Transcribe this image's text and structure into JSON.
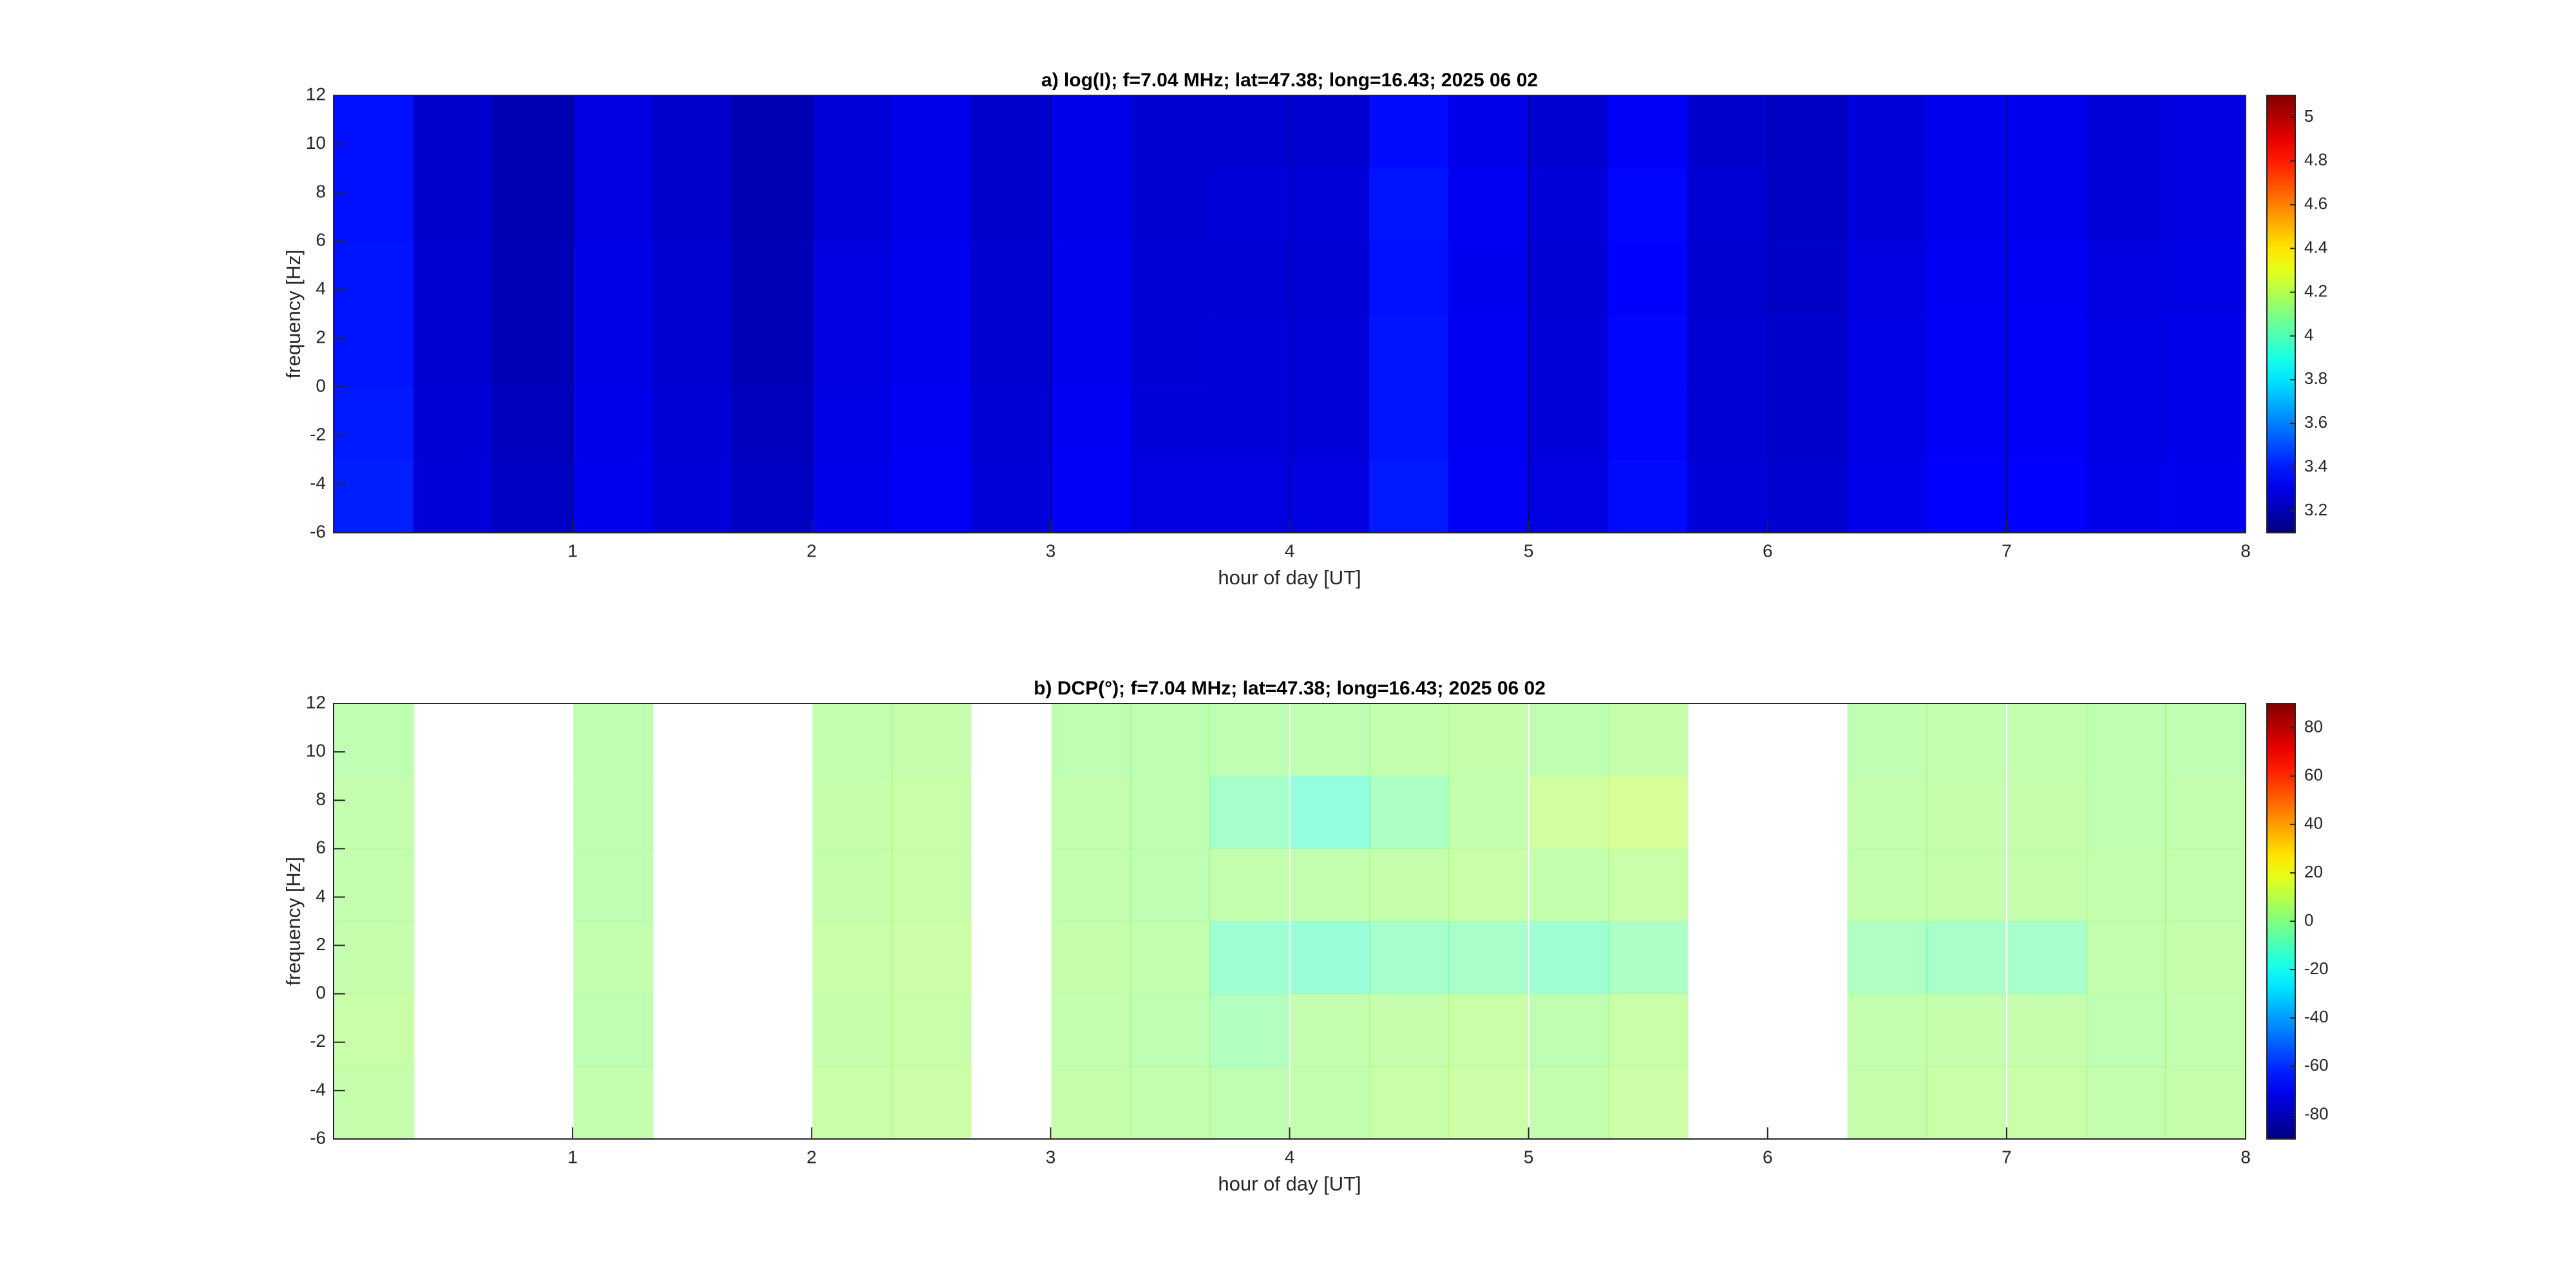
{
  "chart_data": [
    {
      "type": "heatmap",
      "title": "a) log(I); f=7.04 MHz;  lat=47.38; long=16.43; 2025 06 02",
      "x_label": "hour of day [UT]",
      "y_label": "frequency [Hz]",
      "xlim": [
        0,
        8
      ],
      "xticks": [
        1,
        2,
        3,
        4,
        5,
        6,
        7,
        8
      ],
      "ylim": [
        -6,
        12
      ],
      "yticks": [
        -6,
        -4,
        -2,
        0,
        2,
        4,
        6,
        8,
        10,
        12
      ],
      "clim": [
        3.1,
        5.1
      ],
      "cticks": [
        3.2,
        3.4,
        3.6,
        3.8,
        4,
        4.2,
        4.4,
        4.6,
        4.8,
        5
      ],
      "colormap": "jet",
      "x": [
        0.17,
        0.5,
        0.83,
        1.17,
        1.5,
        1.83,
        2.17,
        2.5,
        2.83,
        3.17,
        3.5,
        3.83,
        4.17,
        4.5,
        4.83,
        5.17,
        5.5,
        5.83,
        6.17,
        6.5,
        6.83,
        7.17,
        7.5,
        7.83
      ],
      "y": [
        -4.5,
        -1.5,
        1.5,
        4.5,
        7.5,
        10.5
      ],
      "z": [
        [
          3.41,
          3.28,
          3.23,
          3.32,
          3.28,
          3.23,
          3.31,
          3.34,
          3.28,
          3.34,
          3.29,
          3.29,
          3.29,
          3.4,
          3.34,
          3.29,
          3.37,
          3.28,
          3.26,
          3.31,
          3.35,
          3.35,
          3.31,
          3.32
        ],
        [
          3.4,
          3.27,
          3.22,
          3.31,
          3.27,
          3.22,
          3.3,
          3.33,
          3.27,
          3.33,
          3.28,
          3.28,
          3.28,
          3.39,
          3.33,
          3.28,
          3.36,
          3.27,
          3.25,
          3.3,
          3.34,
          3.34,
          3.3,
          3.31
        ],
        [
          3.39,
          3.26,
          3.21,
          3.3,
          3.26,
          3.21,
          3.29,
          3.32,
          3.26,
          3.32,
          3.27,
          3.28,
          3.28,
          3.39,
          3.33,
          3.28,
          3.36,
          3.27,
          3.25,
          3.3,
          3.34,
          3.34,
          3.3,
          3.31
        ],
        [
          3.39,
          3.26,
          3.21,
          3.3,
          3.26,
          3.21,
          3.29,
          3.32,
          3.26,
          3.32,
          3.27,
          3.27,
          3.27,
          3.38,
          3.32,
          3.27,
          3.35,
          3.26,
          3.24,
          3.29,
          3.33,
          3.33,
          3.29,
          3.3
        ],
        [
          3.38,
          3.25,
          3.2,
          3.29,
          3.25,
          3.2,
          3.28,
          3.31,
          3.25,
          3.31,
          3.26,
          3.28,
          3.28,
          3.39,
          3.33,
          3.28,
          3.36,
          3.27,
          3.23,
          3.28,
          3.32,
          3.32,
          3.28,
          3.29
        ],
        [
          3.38,
          3.25,
          3.2,
          3.29,
          3.25,
          3.2,
          3.28,
          3.31,
          3.25,
          3.31,
          3.26,
          3.26,
          3.26,
          3.37,
          3.31,
          3.26,
          3.34,
          3.25,
          3.23,
          3.28,
          3.32,
          3.32,
          3.28,
          3.29
        ]
      ]
    },
    {
      "type": "heatmap",
      "title": "b) DCP(°); f=7.04 MHz;  lat=47.38; long=16.43; 2025 06 02",
      "x_label": "hour of day [UT]",
      "y_label": "frequency [Hz]",
      "xlim": [
        0,
        8
      ],
      "xticks": [
        1,
        2,
        3,
        4,
        5,
        6,
        7,
        8
      ],
      "ylim": [
        -6,
        12
      ],
      "yticks": [
        -6,
        -4,
        -2,
        0,
        2,
        4,
        6,
        8,
        10,
        12
      ],
      "clim": [
        -90,
        90
      ],
      "cticks": [
        -80,
        -60,
        -40,
        -20,
        0,
        20,
        40,
        60,
        80
      ],
      "colormap": "jet",
      "x": [
        0.17,
        0.5,
        0.83,
        1.17,
        1.5,
        1.83,
        2.17,
        2.5,
        2.83,
        3.17,
        3.5,
        3.83,
        4.17,
        4.5,
        4.83,
        5.17,
        5.5,
        5.83,
        6.17,
        6.5,
        6.83,
        7.17,
        7.5,
        7.83
      ],
      "y": [
        -4.5,
        -1.5,
        1.5,
        4.5,
        7.5,
        10.5
      ],
      "z": [
        [
          4,
          null,
          null,
          3,
          null,
          null,
          5,
          6,
          null,
          4,
          3,
          2,
          3,
          5,
          6,
          3,
          6,
          null,
          null,
          4,
          5,
          5,
          3,
          4
        ],
        [
          5,
          null,
          null,
          2,
          null,
          null,
          4,
          5,
          null,
          3,
          2,
          -2,
          3,
          4,
          5,
          2,
          5,
          null,
          null,
          3,
          4,
          4,
          2,
          3
        ],
        [
          4,
          null,
          null,
          3,
          null,
          null,
          5,
          6,
          null,
          4,
          3,
          -8,
          -10,
          -6,
          -5,
          -8,
          -4,
          null,
          null,
          -3,
          -5,
          -6,
          3,
          4
        ],
        [
          3,
          null,
          null,
          2,
          null,
          null,
          4,
          5,
          null,
          3,
          2,
          3,
          3,
          4,
          5,
          3,
          5,
          null,
          null,
          3,
          4,
          4,
          3,
          3
        ],
        [
          3,
          null,
          null,
          2,
          null,
          null,
          4,
          5,
          null,
          3,
          2,
          -6,
          -12,
          -4,
          3,
          8,
          10,
          null,
          null,
          3,
          4,
          4,
          2,
          3
        ],
        [
          2,
          null,
          null,
          2,
          null,
          null,
          3,
          4,
          null,
          2,
          2,
          2,
          2,
          3,
          4,
          2,
          4,
          null,
          null,
          2,
          3,
          3,
          2,
          2
        ]
      ]
    }
  ]
}
